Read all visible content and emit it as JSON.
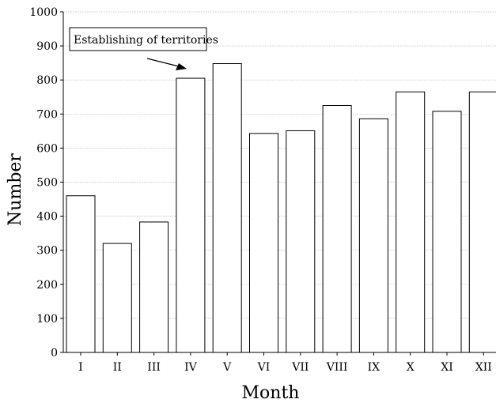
{
  "chart_data": {
    "type": "bar",
    "categories": [
      "I",
      "II",
      "III",
      "IV",
      "V",
      "VI",
      "VII",
      "VIII",
      "IX",
      "X",
      "XI",
      "XII"
    ],
    "values": [
      460,
      320,
      383,
      805,
      848,
      643,
      651,
      725,
      686,
      765,
      708,
      765
    ],
    "xlabel": "Month",
    "ylabel": "Number",
    "ylim": [
      0,
      1000
    ],
    "yticks": [
      0,
      100,
      200,
      300,
      400,
      500,
      600,
      700,
      800,
      900,
      1000
    ],
    "grid": true,
    "annotation": {
      "text": "Establishing of territories",
      "target_category": "IV"
    }
  }
}
